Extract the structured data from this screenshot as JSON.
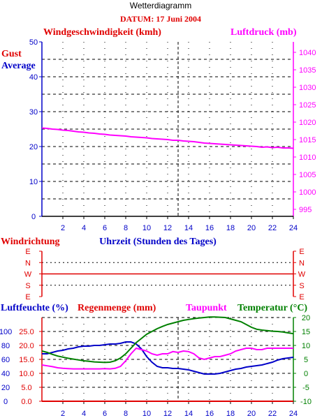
{
  "header": {
    "title": "Wetterdiagramm",
    "date": "DATUM: 17 Juni 2004"
  },
  "colors": {
    "red": "#e00000",
    "blue": "#0000c8",
    "magenta": "#ff00ff",
    "green": "#008000",
    "axis": "#000000"
  },
  "chart_data": [
    {
      "type": "line",
      "left_title": "Windgeschwindigkeit (kmh)",
      "right_title": "Luftdruck (mb)",
      "legend": [
        {
          "label": "Gust",
          "color": "#e00000"
        },
        {
          "label": "Average",
          "color": "#0000c8"
        }
      ],
      "xlim": [
        0,
        24
      ],
      "x_ticks": [
        "2",
        "4",
        "6",
        "8",
        "10",
        "12",
        "14",
        "16",
        "18",
        "20",
        "22",
        "24"
      ],
      "ylim_left": [
        0,
        50
      ],
      "left_ticks": [
        "0",
        "10",
        "20",
        "30",
        "40",
        "50"
      ],
      "ylim_right": [
        993,
        1043
      ],
      "right_ticks": [
        "995",
        "1000",
        "1005",
        "1010",
        "1015",
        "1020",
        "1025",
        "1030",
        "1035",
        "1040"
      ],
      "marker_x": 13,
      "series": [
        {
          "name": "Luftdruck (mb)",
          "color": "#ff00ff",
          "axis": "right",
          "x": [
            0,
            0.5,
            1,
            1.5,
            2,
            2.5,
            3,
            3.5,
            4,
            4.5,
            5,
            5.5,
            6,
            6.5,
            7,
            7.5,
            8,
            8.5,
            9,
            9.5,
            10,
            10.5,
            11,
            11.5,
            12,
            12.5,
            13,
            13.5,
            14,
            14.5,
            15,
            15.5,
            16,
            16.5,
            17,
            17.5,
            18,
            18.5,
            19,
            19.5,
            20,
            20.5,
            21,
            21.5,
            22,
            22.5,
            23,
            23.5,
            24
          ],
          "y": [
            1018.3,
            1018.2,
            1018.0,
            1017.9,
            1017.7,
            1017.6,
            1017.4,
            1017.2,
            1017.1,
            1016.9,
            1016.8,
            1016.6,
            1016.5,
            1016.3,
            1016.2,
            1016.1,
            1016.0,
            1015.8,
            1015.7,
            1015.6,
            1015.5,
            1015.3,
            1015.2,
            1015.1,
            1015.0,
            1014.8,
            1014.8,
            1014.6,
            1014.5,
            1014.4,
            1014.2,
            1014.0,
            1013.9,
            1013.8,
            1013.7,
            1013.6,
            1013.5,
            1013.4,
            1013.3,
            1013.2,
            1013.1,
            1013.0,
            1012.8,
            1012.9,
            1012.7,
            1012.8,
            1012.6,
            1012.6,
            1012.5
          ]
        }
      ]
    },
    {
      "type": "line",
      "left_title": "Windrichtung",
      "center_title": "Uhrzeit (Stunden des Tages)",
      "y_categories": [
        "E",
        "S",
        "W",
        "N",
        "E"
      ],
      "xlim": [
        0,
        24
      ],
      "series": [
        {
          "name": "Windrichtung",
          "color": "#e00000",
          "y_category": "W",
          "x": [
            0,
            24
          ]
        }
      ]
    },
    {
      "type": "line",
      "titles": [
        {
          "text": "Luftfeuchte (%)",
          "color": "#0000c8"
        },
        {
          "text": "Regenmenge (mm)",
          "color": "#e00000"
        },
        {
          "text": "Taupunkt",
          "color": "#ff00ff"
        },
        {
          "text": "Temperatur (°C)",
          "color": "#008000"
        }
      ],
      "xlim": [
        0,
        24
      ],
      "x_ticks": [
        "2",
        "4",
        "6",
        "8",
        "10",
        "12",
        "14",
        "16",
        "18",
        "20",
        "22",
        "24"
      ],
      "ylim_humidity": [
        0,
        120
      ],
      "humidity_ticks": [
        "0",
        "20",
        "40",
        "60",
        "80",
        "100"
      ],
      "ylim_rain": [
        0,
        30
      ],
      "rain_ticks": [
        "0.0",
        "5.0",
        "10.0",
        "15.0",
        "20.0",
        "25.0"
      ],
      "ylim_temp": [
        -10,
        20
      ],
      "temp_ticks": [
        "-10",
        "-5",
        "0",
        "5",
        "10",
        "15",
        "20"
      ],
      "marker_x": 13,
      "series": [
        {
          "name": "Luftfeuchte (%)",
          "color": "#0000c8",
          "axis": "humidity",
          "x": [
            0,
            0.5,
            1,
            1.5,
            2,
            2.5,
            3,
            3.5,
            4,
            4.5,
            5,
            5.5,
            6,
            6.5,
            7,
            7.5,
            8,
            8.5,
            9,
            9.5,
            10,
            10.5,
            11,
            11.5,
            12,
            12.5,
            13,
            13.5,
            14,
            14.5,
            15,
            15.5,
            16,
            16.5,
            17,
            17.5,
            18,
            18.5,
            19,
            19.5,
            20,
            20.5,
            21,
            21.5,
            22,
            22.5,
            23,
            23.5,
            24
          ],
          "y": [
            68,
            68,
            70,
            72,
            73,
            75,
            76,
            78,
            79,
            79,
            80,
            80,
            81,
            82,
            82,
            83,
            85,
            85,
            82,
            75,
            64,
            56,
            50,
            48,
            48,
            47,
            47,
            46,
            45,
            43,
            41,
            39,
            39,
            39,
            40,
            42,
            44,
            46,
            47,
            49,
            50,
            51,
            52,
            54,
            56,
            59,
            61,
            62,
            63
          ]
        },
        {
          "name": "Taupunkt",
          "color": "#ff00ff",
          "axis": "temp",
          "x": [
            0,
            0.5,
            1,
            1.5,
            2,
            2.5,
            3,
            3.5,
            4,
            4.5,
            5,
            5.5,
            6,
            6.5,
            7,
            7.5,
            8,
            8.5,
            9,
            9.5,
            10,
            10.5,
            11,
            11.5,
            12,
            12.5,
            13,
            13.5,
            14,
            14.5,
            15,
            15.5,
            16,
            16.5,
            17,
            17.5,
            18,
            18.5,
            19,
            19.5,
            20,
            20.5,
            21,
            21.5,
            22,
            22.5,
            23,
            23.5,
            24
          ],
          "y": [
            3.0,
            2.7,
            2.4,
            2.0,
            1.8,
            1.7,
            1.6,
            1.6,
            1.6,
            1.6,
            1.6,
            1.6,
            1.7,
            1.6,
            1.8,
            2.5,
            4.5,
            7.0,
            9.0,
            8.5,
            8.0,
            7.0,
            6.5,
            7.0,
            7.0,
            7.8,
            7.5,
            8.0,
            7.8,
            7.0,
            5.5,
            5.0,
            5.5,
            6.0,
            6.0,
            6.5,
            7.0,
            8.0,
            8.5,
            9.0,
            9.0,
            8.5,
            8.5,
            9.0,
            9.0,
            9.0,
            9.0,
            9.0,
            9.0
          ]
        },
        {
          "name": "Temperatur (°C)",
          "color": "#008000",
          "axis": "temp",
          "x": [
            0,
            0.5,
            1,
            1.5,
            2,
            2.5,
            3,
            3.5,
            4,
            4.5,
            5,
            5.5,
            6,
            6.5,
            7,
            7.5,
            8,
            8.5,
            9,
            9.5,
            10,
            10.5,
            11,
            11.5,
            12,
            12.5,
            13,
            13.5,
            14,
            14.5,
            15,
            15.5,
            16,
            16.5,
            17,
            17.5,
            18,
            18.5,
            19,
            19.5,
            20,
            20.5,
            21,
            21.5,
            22,
            22.5,
            23,
            23.5,
            24
          ],
          "y": [
            8.0,
            7.5,
            6.8,
            6.2,
            5.8,
            5.4,
            5.1,
            4.8,
            4.5,
            4.3,
            4.1,
            4.0,
            3.9,
            4.0,
            4.5,
            5.5,
            7.0,
            9.0,
            11.0,
            12.5,
            14.0,
            15.0,
            16.0,
            16.8,
            17.5,
            18.0,
            18.5,
            19.0,
            19.3,
            19.6,
            19.8,
            20.0,
            20.2,
            20.2,
            20.1,
            20.0,
            19.5,
            19.0,
            18.5,
            17.5,
            16.5,
            15.8,
            15.5,
            15.3,
            15.1,
            15.0,
            14.8,
            14.5,
            14.2
          ]
        },
        {
          "name": "Regenmenge (mm)",
          "color": "#e00000",
          "axis": "rain",
          "x": [
            0,
            24
          ],
          "y": [
            0,
            0
          ]
        }
      ]
    }
  ]
}
